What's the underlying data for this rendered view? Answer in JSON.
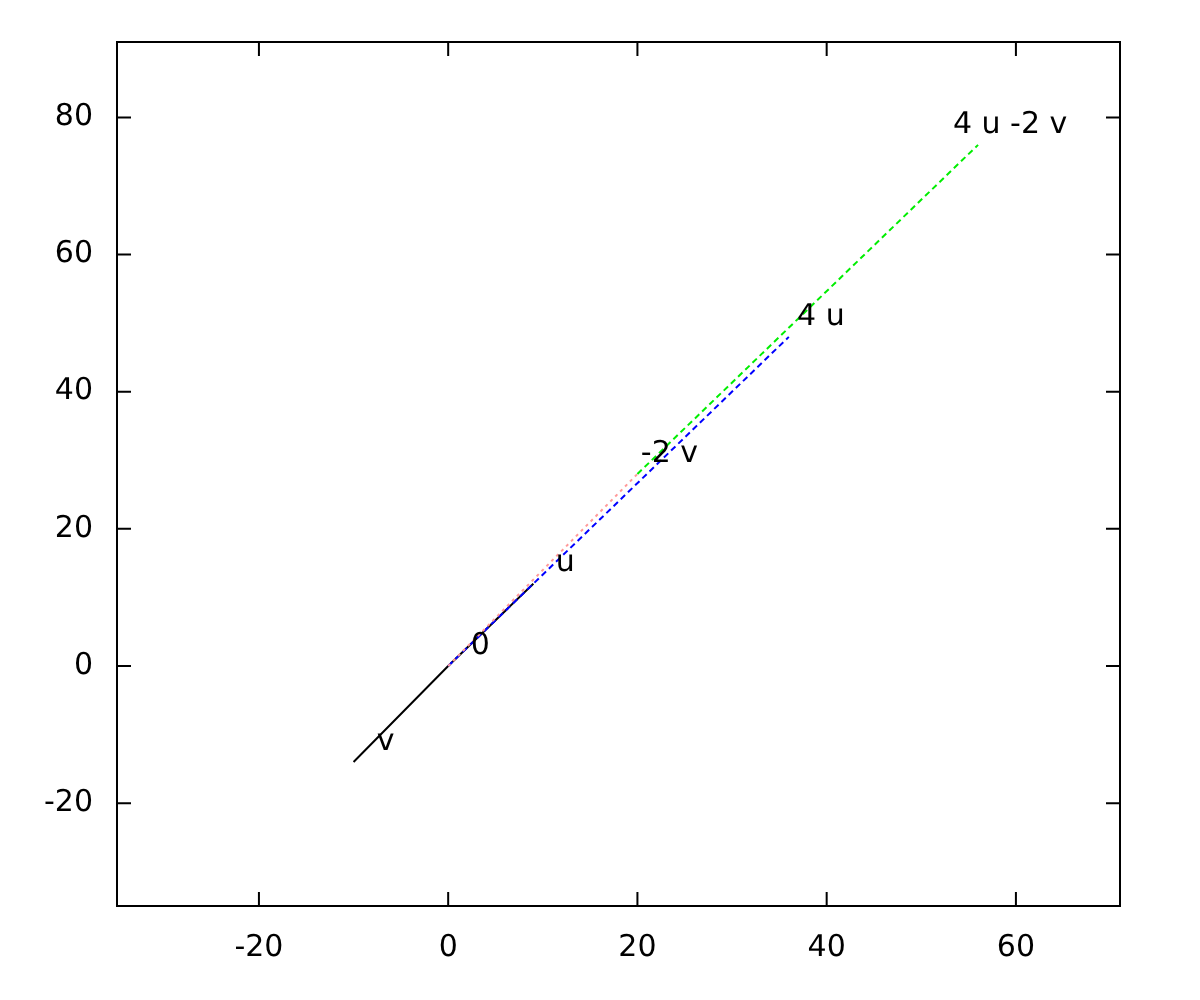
{
  "chart_data": {
    "type": "line",
    "xlim": [
      -35,
      71
    ],
    "ylim": [
      -35,
      91
    ],
    "xticks": [
      -20,
      0,
      20,
      40,
      60
    ],
    "yticks": [
      -20,
      0,
      20,
      40,
      60,
      80
    ],
    "grid": false,
    "legend": false,
    "marker": "none",
    "series": [
      {
        "color": "#000000",
        "x": [
          -10,
          0,
          9
        ],
        "values": [
          -14,
          0,
          12
        ],
        "line_style": "solid"
      },
      {
        "color": "#0000ff",
        "x": [
          0,
          36
        ],
        "values": [
          0,
          48
        ],
        "line_style": "dashed"
      },
      {
        "color": "#ff9999",
        "x": [
          0,
          20
        ],
        "values": [
          0,
          28
        ],
        "line_style": "dotted"
      },
      {
        "color": "#00ee00",
        "x": [
          20,
          56
        ],
        "values": [
          28,
          76
        ],
        "line_style": "dashed"
      }
    ],
    "annotations": [
      {
        "text": "0",
        "x": 0,
        "y": 0
      },
      {
        "text": "u",
        "x": 9,
        "y": 12
      },
      {
        "text": "v",
        "x": -10,
        "y": -14
      },
      {
        "text": "-2 v",
        "x": 20,
        "y": 28
      },
      {
        "text": "4 u",
        "x": 36,
        "y": 48
      },
      {
        "text": "4 u -2 v",
        "x": 56,
        "y": 76
      }
    ]
  }
}
